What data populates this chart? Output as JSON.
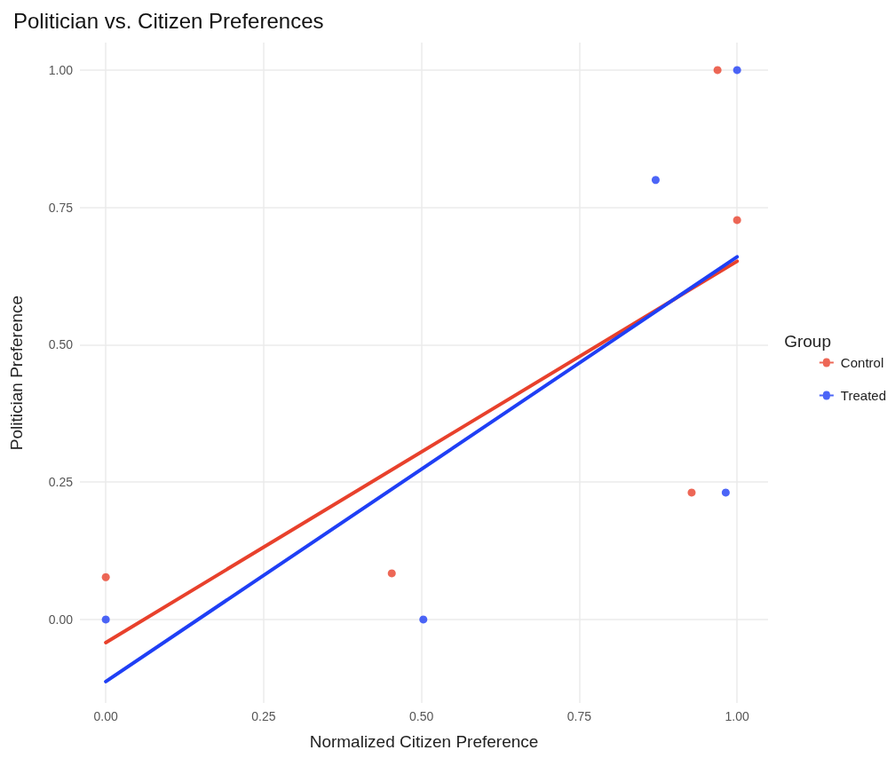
{
  "chart_data": {
    "type": "scatter",
    "title": "Politician vs. Citizen Preferences",
    "xlabel": "Normalized Citizen Preference",
    "ylabel": "Politician Preference",
    "legend_title": "Group",
    "series": [
      {
        "name": "Control",
        "color": "#e8412c",
        "x": [
          0,
          0.453,
          0.928,
          0.969,
          1.0
        ],
        "values": [
          0.077,
          0.084,
          0.231,
          1.0,
          0.727
        ]
      },
      {
        "name": "Treated",
        "color": "#1f3ff5",
        "x": [
          0,
          0.503,
          0.871,
          0.982,
          1.0
        ],
        "values": [
          0,
          0,
          0.8,
          0.231,
          1.0
        ]
      },
      {
        "type": "line",
        "color": "#e8412c",
        "x": [
          0,
          1
        ],
        "values": [
          -0.042,
          0.652
        ],
        "marker": "none"
      },
      {
        "type": "line",
        "color": "#1f3ff5",
        "x": [
          0,
          1
        ],
        "values": [
          -0.113,
          0.66
        ],
        "marker": "none"
      }
    ],
    "xlim": [
      -0.041,
      1.049
    ],
    "ylim": [
      -0.152,
      1.05
    ],
    "xticks": [
      {
        "value": 0,
        "label": "0.00"
      },
      {
        "value": 0.25,
        "label": "0.25"
      },
      {
        "value": 0.5,
        "label": "0.50"
      },
      {
        "value": 0.75,
        "label": "0.75"
      },
      {
        "value": 1,
        "label": "1.00"
      }
    ],
    "yticks": [
      {
        "value": 0,
        "label": "0.00"
      },
      {
        "value": 0.25,
        "label": "0.25"
      },
      {
        "value": 0.5,
        "label": "0.50"
      },
      {
        "value": 0.75,
        "label": "0.75"
      },
      {
        "value": 1,
        "label": "1.00"
      }
    ],
    "grid": true,
    "legend": "right",
    "marker": "circle"
  }
}
